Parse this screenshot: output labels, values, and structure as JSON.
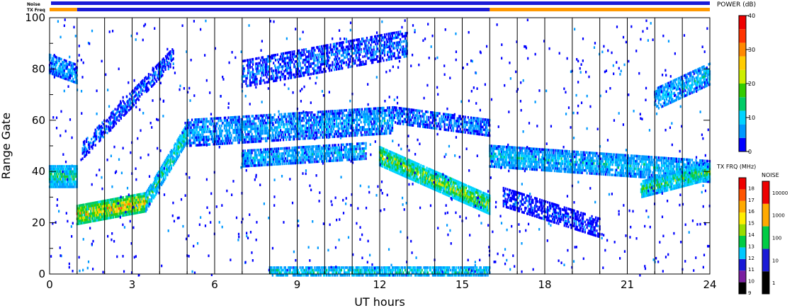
{
  "chart_data": {
    "type": "heatmap",
    "title": "",
    "xlabel": "UT hours",
    "ylabel": "Range Gate",
    "xlim": [
      0,
      24
    ],
    "ylim": [
      0,
      100
    ],
    "x_ticks": [
      "0",
      "3",
      "6",
      "9",
      "12",
      "15",
      "18",
      "21",
      "24"
    ],
    "y_ticks": [
      "0",
      "20",
      "40",
      "60",
      "80",
      "100"
    ],
    "scan_boundaries_ut": [
      1,
      2,
      3,
      4,
      5,
      6,
      7,
      8,
      9,
      10,
      11,
      12,
      13,
      14,
      15,
      16,
      17,
      18,
      19,
      20,
      21,
      22,
      23
    ],
    "status_bars": {
      "noise_label": "Noise",
      "txfreq_label": "TX Freq",
      "noise_color": "#1a1ad6",
      "txfreq_segments": [
        {
          "start": 0,
          "end": 1,
          "color": "#ff9900"
        },
        {
          "start": 1,
          "end": 16,
          "color": "#1a1ad6"
        },
        {
          "start": 16,
          "end": 24,
          "color": "#ff9900"
        }
      ]
    },
    "power_colorbar": {
      "label": "POWER (dB)",
      "ticks": [
        "0",
        "10",
        "20",
        "30",
        "40"
      ],
      "range": [
        0,
        40
      ],
      "colors": [
        "#0000ff",
        "#0099ff",
        "#00d4ff",
        "#00cc66",
        "#33cc00",
        "#ccee00",
        "#ffcc00",
        "#ff8800",
        "#ff3300",
        "#ee0000"
      ]
    },
    "txfreq_colorbar": {
      "label": "TX FRQ (MHz)",
      "ticks": [
        "9",
        "10",
        "11",
        "12",
        "13",
        "14",
        "15",
        "16",
        "17",
        "18"
      ],
      "colors": [
        "#000000",
        "#7a1fa0",
        "#1a1ad6",
        "#00c8ff",
        "#00cc44",
        "#99dd00",
        "#ffee00",
        "#ffaa00",
        "#ff5500",
        "#ee0000"
      ]
    },
    "noise_colorbar": {
      "label": "NOISE",
      "ticks": [
        "1",
        "10",
        "100",
        "1000",
        "10000"
      ],
      "colors": [
        "#000000",
        "#1a1ad6",
        "#00cc44",
        "#ffaa00",
        "#ee0000"
      ]
    },
    "echo_bands": [
      {
        "name": "low-range-0-1ut",
        "t0": 0.0,
        "t1": 1.0,
        "g0": 38,
        "g1": 38,
        "width": 8,
        "power": 14,
        "density": 0.9
      },
      {
        "name": "high-range-0-1ut",
        "t0": 0.0,
        "t1": 1.0,
        "g0": 82,
        "g1": 78,
        "width": 7,
        "power": 8,
        "density": 0.7
      },
      {
        "name": "main-sweep-morning",
        "t0": 1.0,
        "t1": 3.5,
        "g0": 23,
        "g1": 28,
        "width": 7,
        "power": 26,
        "density": 0.95
      },
      {
        "name": "main-sweep-rise",
        "t0": 3.5,
        "t1": 5.0,
        "g0": 28,
        "g1": 55,
        "width": 7,
        "power": 14,
        "density": 0.85
      },
      {
        "name": "upper-arc-morning",
        "t0": 1.2,
        "t1": 4.5,
        "g0": 48,
        "g1": 85,
        "width": 6,
        "power": 5,
        "density": 0.55
      },
      {
        "name": "mid-band-5-12",
        "t0": 5.0,
        "t1": 12.5,
        "g0": 55,
        "g1": 60,
        "width": 10,
        "power": 8,
        "density": 0.65
      },
      {
        "name": "lower-band-7-12",
        "t0": 7.0,
        "t1": 11.5,
        "g0": 45,
        "g1": 48,
        "width": 6,
        "power": 9,
        "density": 0.7
      },
      {
        "name": "upper-band-7-13",
        "t0": 7.0,
        "t1": 13.0,
        "g0": 78,
        "g1": 90,
        "width": 10,
        "power": 5,
        "density": 0.5
      },
      {
        "name": "descending-arc",
        "t0": 12.0,
        "t1": 16.0,
        "g0": 46,
        "g1": 27,
        "width": 7,
        "power": 20,
        "density": 0.9
      },
      {
        "name": "descending-upper",
        "t0": 12.5,
        "t1": 16.0,
        "g0": 62,
        "g1": 57,
        "width": 6,
        "power": 6,
        "density": 0.6
      },
      {
        "name": "evening-band-45",
        "t0": 16.0,
        "t1": 24.0,
        "g0": 46,
        "g1": 40,
        "width": 8,
        "power": 10,
        "density": 0.75
      },
      {
        "name": "evening-lower",
        "t0": 16.5,
        "t1": 20.0,
        "g0": 30,
        "g1": 18,
        "width": 7,
        "power": 4,
        "density": 0.55
      },
      {
        "name": "late-band-33",
        "t0": 21.5,
        "t1": 24.0,
        "g0": 33,
        "g1": 40,
        "width": 6,
        "power": 16,
        "density": 0.85
      },
      {
        "name": "late-upper",
        "t0": 22.0,
        "t1": 24.0,
        "g0": 68,
        "g1": 78,
        "width": 8,
        "power": 10,
        "density": 0.65
      },
      {
        "name": "ground-scatter-0",
        "t0": 8.0,
        "t1": 16.0,
        "g0": 1,
        "g1": 1,
        "width": 3,
        "power": 12,
        "density": 0.7
      }
    ]
  }
}
